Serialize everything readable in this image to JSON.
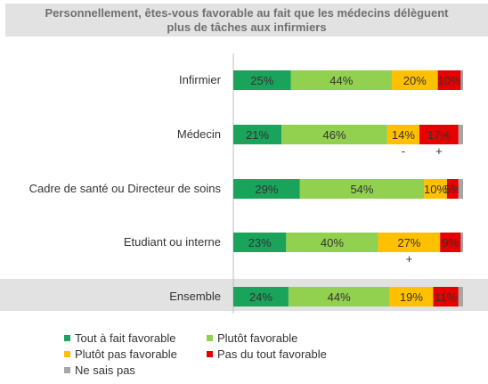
{
  "title": {
    "line1": "Personnellement, êtes-vous favorable au fait que les médecins délèguent",
    "line2": "plus de tâches aux infirmiers"
  },
  "chart_data": {
    "type": "bar",
    "stacked": true,
    "orientation": "horizontal",
    "categories": [
      "Infirmier",
      "Médecin",
      "Cadre de santé ou Directeur de soins",
      "Etudiant ou interne",
      "Ensemble"
    ],
    "series": [
      {
        "name": "Tout à fait favorable",
        "color": "#19a35b",
        "values": [
          25,
          21,
          29,
          23,
          24
        ]
      },
      {
        "name": "Plutôt favorable",
        "color": "#92d050",
        "values": [
          44,
          46,
          54,
          40,
          44
        ]
      },
      {
        "name": "Plutôt pas favorable",
        "color": "#ffc000",
        "values": [
          20,
          14,
          10,
          27,
          19
        ]
      },
      {
        "name": "Pas du tout favorable",
        "color": "#e60000",
        "values": [
          10,
          17,
          5,
          9,
          11
        ]
      },
      {
        "name": "Ne sais pas",
        "color": "#a6a6a6",
        "values": [
          1,
          2,
          2,
          1,
          2
        ]
      }
    ],
    "value_labels": [
      [
        "25%",
        "44%",
        "20%",
        "10%",
        ""
      ],
      [
        "21%",
        "46%",
        "14%",
        "17%",
        ""
      ],
      [
        "29%",
        "54%",
        "10%",
        "5%",
        ""
      ],
      [
        "23%",
        "40%",
        "27%",
        "9%",
        ""
      ],
      [
        "24%",
        "44%",
        "19%",
        "11%",
        ""
      ]
    ],
    "significance": [
      {
        "category": 1,
        "series": 2,
        "mark": "-"
      },
      {
        "category": 1,
        "series": 3,
        "mark": "+"
      },
      {
        "category": 3,
        "series": 2,
        "mark": "+"
      }
    ],
    "highlight_category": "Ensemble",
    "legend_position": "bottom"
  }
}
